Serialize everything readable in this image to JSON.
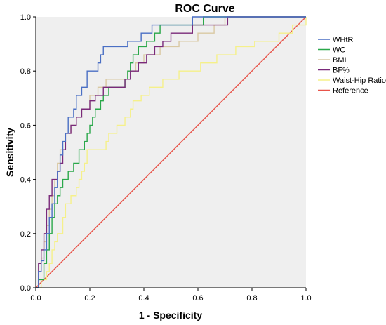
{
  "chart_data": {
    "type": "line",
    "title": "ROC Curve",
    "xlabel": "1 - Specificity",
    "ylabel": "Sensitivity",
    "xlim": [
      0,
      1
    ],
    "ylim": [
      0,
      1
    ],
    "xticks": [
      "0.0",
      "0.2",
      "0.4",
      "0.6",
      "0.8",
      "1.0"
    ],
    "yticks": [
      "0.0",
      "0.2",
      "0.4",
      "0.6",
      "0.8",
      "1.0"
    ],
    "grid": false,
    "legend_position": "top-right",
    "colors": {
      "plot_background": "#efefef",
      "axis": "#000000"
    },
    "series": [
      {
        "name": "WHtR",
        "color": "#4a6fc4",
        "points": [
          [
            0,
            0
          ],
          [
            0.01,
            0
          ],
          [
            0.01,
            0.06
          ],
          [
            0.02,
            0.06
          ],
          [
            0.02,
            0.1
          ],
          [
            0.03,
            0.1
          ],
          [
            0.03,
            0.14
          ],
          [
            0.04,
            0.14
          ],
          [
            0.04,
            0.2
          ],
          [
            0.05,
            0.2
          ],
          [
            0.05,
            0.26
          ],
          [
            0.06,
            0.26
          ],
          [
            0.06,
            0.31
          ],
          [
            0.07,
            0.31
          ],
          [
            0.07,
            0.37
          ],
          [
            0.08,
            0.37
          ],
          [
            0.08,
            0.43
          ],
          [
            0.09,
            0.43
          ],
          [
            0.09,
            0.49
          ],
          [
            0.1,
            0.49
          ],
          [
            0.1,
            0.54
          ],
          [
            0.11,
            0.54
          ],
          [
            0.11,
            0.57
          ],
          [
            0.12,
            0.57
          ],
          [
            0.12,
            0.63
          ],
          [
            0.14,
            0.63
          ],
          [
            0.14,
            0.66
          ],
          [
            0.15,
            0.66
          ],
          [
            0.15,
            0.71
          ],
          [
            0.17,
            0.71
          ],
          [
            0.17,
            0.74
          ],
          [
            0.19,
            0.74
          ],
          [
            0.19,
            0.8
          ],
          [
            0.23,
            0.8
          ],
          [
            0.23,
            0.83
          ],
          [
            0.24,
            0.83
          ],
          [
            0.24,
            0.86
          ],
          [
            0.25,
            0.86
          ],
          [
            0.25,
            0.89
          ],
          [
            0.34,
            0.89
          ],
          [
            0.34,
            0.91
          ],
          [
            0.39,
            0.91
          ],
          [
            0.39,
            0.94
          ],
          [
            0.43,
            0.94
          ],
          [
            0.43,
            0.97
          ],
          [
            0.58,
            0.97
          ],
          [
            0.58,
            1.0
          ],
          [
            1,
            1
          ]
        ]
      },
      {
        "name": "WC",
        "color": "#2aa84a",
        "points": [
          [
            0,
            0
          ],
          [
            0.01,
            0
          ],
          [
            0.01,
            0.03
          ],
          [
            0.03,
            0.03
          ],
          [
            0.03,
            0.09
          ],
          [
            0.04,
            0.09
          ],
          [
            0.04,
            0.14
          ],
          [
            0.05,
            0.14
          ],
          [
            0.05,
            0.2
          ],
          [
            0.06,
            0.2
          ],
          [
            0.06,
            0.26
          ],
          [
            0.07,
            0.26
          ],
          [
            0.07,
            0.31
          ],
          [
            0.08,
            0.31
          ],
          [
            0.08,
            0.34
          ],
          [
            0.09,
            0.34
          ],
          [
            0.09,
            0.37
          ],
          [
            0.1,
            0.37
          ],
          [
            0.1,
            0.4
          ],
          [
            0.12,
            0.4
          ],
          [
            0.12,
            0.43
          ],
          [
            0.14,
            0.43
          ],
          [
            0.14,
            0.46
          ],
          [
            0.16,
            0.46
          ],
          [
            0.16,
            0.51
          ],
          [
            0.18,
            0.51
          ],
          [
            0.18,
            0.54
          ],
          [
            0.19,
            0.54
          ],
          [
            0.19,
            0.57
          ],
          [
            0.2,
            0.57
          ],
          [
            0.2,
            0.6
          ],
          [
            0.21,
            0.6
          ],
          [
            0.21,
            0.63
          ],
          [
            0.22,
            0.63
          ],
          [
            0.22,
            0.66
          ],
          [
            0.24,
            0.66
          ],
          [
            0.24,
            0.69
          ],
          [
            0.25,
            0.69
          ],
          [
            0.25,
            0.71
          ],
          [
            0.27,
            0.71
          ],
          [
            0.27,
            0.74
          ],
          [
            0.33,
            0.74
          ],
          [
            0.33,
            0.77
          ],
          [
            0.34,
            0.77
          ],
          [
            0.34,
            0.8
          ],
          [
            0.35,
            0.8
          ],
          [
            0.35,
            0.83
          ],
          [
            0.36,
            0.83
          ],
          [
            0.36,
            0.86
          ],
          [
            0.38,
            0.86
          ],
          [
            0.38,
            0.89
          ],
          [
            0.41,
            0.89
          ],
          [
            0.41,
            0.91
          ],
          [
            0.44,
            0.91
          ],
          [
            0.44,
            0.94
          ],
          [
            0.46,
            0.94
          ],
          [
            0.46,
            0.97
          ],
          [
            0.62,
            0.97
          ],
          [
            0.62,
            1.0
          ],
          [
            1,
            1
          ]
        ]
      },
      {
        "name": "BMI",
        "color": "#d9c9a3",
        "points": [
          [
            0,
            0
          ],
          [
            0.01,
            0
          ],
          [
            0.01,
            0.06
          ],
          [
            0.02,
            0.06
          ],
          [
            0.02,
            0.11
          ],
          [
            0.03,
            0.11
          ],
          [
            0.03,
            0.17
          ],
          [
            0.04,
            0.17
          ],
          [
            0.04,
            0.23
          ],
          [
            0.05,
            0.23
          ],
          [
            0.05,
            0.29
          ],
          [
            0.06,
            0.29
          ],
          [
            0.06,
            0.34
          ],
          [
            0.07,
            0.34
          ],
          [
            0.07,
            0.4
          ],
          [
            0.08,
            0.4
          ],
          [
            0.08,
            0.46
          ],
          [
            0.09,
            0.46
          ],
          [
            0.09,
            0.51
          ],
          [
            0.11,
            0.51
          ],
          [
            0.11,
            0.57
          ],
          [
            0.13,
            0.57
          ],
          [
            0.13,
            0.6
          ],
          [
            0.15,
            0.6
          ],
          [
            0.15,
            0.63
          ],
          [
            0.17,
            0.63
          ],
          [
            0.17,
            0.66
          ],
          [
            0.2,
            0.66
          ],
          [
            0.2,
            0.71
          ],
          [
            0.23,
            0.71
          ],
          [
            0.23,
            0.74
          ],
          [
            0.26,
            0.74
          ],
          [
            0.26,
            0.77
          ],
          [
            0.34,
            0.77
          ],
          [
            0.34,
            0.8
          ],
          [
            0.37,
            0.8
          ],
          [
            0.37,
            0.83
          ],
          [
            0.4,
            0.83
          ],
          [
            0.4,
            0.86
          ],
          [
            0.46,
            0.86
          ],
          [
            0.46,
            0.89
          ],
          [
            0.53,
            0.89
          ],
          [
            0.53,
            0.91
          ],
          [
            0.6,
            0.91
          ],
          [
            0.6,
            0.94
          ],
          [
            0.66,
            0.94
          ],
          [
            0.66,
            0.97
          ],
          [
            0.7,
            0.97
          ],
          [
            0.7,
            1.0
          ],
          [
            1,
            1
          ]
        ]
      },
      {
        "name": "BF%",
        "color": "#7a2a7a",
        "points": [
          [
            0,
            0
          ],
          [
            0.01,
            0
          ],
          [
            0.01,
            0.09
          ],
          [
            0.02,
            0.09
          ],
          [
            0.02,
            0.14
          ],
          [
            0.03,
            0.14
          ],
          [
            0.03,
            0.2
          ],
          [
            0.04,
            0.2
          ],
          [
            0.04,
            0.29
          ],
          [
            0.05,
            0.29
          ],
          [
            0.05,
            0.34
          ],
          [
            0.06,
            0.34
          ],
          [
            0.06,
            0.4
          ],
          [
            0.08,
            0.4
          ],
          [
            0.08,
            0.43
          ],
          [
            0.09,
            0.43
          ],
          [
            0.09,
            0.46
          ],
          [
            0.1,
            0.46
          ],
          [
            0.1,
            0.51
          ],
          [
            0.11,
            0.51
          ],
          [
            0.11,
            0.57
          ],
          [
            0.13,
            0.57
          ],
          [
            0.13,
            0.6
          ],
          [
            0.15,
            0.6
          ],
          [
            0.15,
            0.63
          ],
          [
            0.17,
            0.63
          ],
          [
            0.17,
            0.66
          ],
          [
            0.2,
            0.66
          ],
          [
            0.2,
            0.69
          ],
          [
            0.22,
            0.69
          ],
          [
            0.22,
            0.71
          ],
          [
            0.25,
            0.71
          ],
          [
            0.25,
            0.74
          ],
          [
            0.33,
            0.74
          ],
          [
            0.33,
            0.77
          ],
          [
            0.35,
            0.77
          ],
          [
            0.35,
            0.8
          ],
          [
            0.38,
            0.8
          ],
          [
            0.38,
            0.83
          ],
          [
            0.41,
            0.83
          ],
          [
            0.41,
            0.86
          ],
          [
            0.44,
            0.86
          ],
          [
            0.44,
            0.89
          ],
          [
            0.47,
            0.89
          ],
          [
            0.47,
            0.91
          ],
          [
            0.5,
            0.91
          ],
          [
            0.5,
            0.94
          ],
          [
            0.58,
            0.94
          ],
          [
            0.58,
            0.97
          ],
          [
            0.71,
            0.97
          ],
          [
            0.71,
            1.0
          ],
          [
            1,
            1
          ]
        ]
      },
      {
        "name": "Waist-Hip Ratio",
        "color": "#f5f08a",
        "points": [
          [
            0,
            0
          ],
          [
            0.02,
            0
          ],
          [
            0.02,
            0.03
          ],
          [
            0.04,
            0.03
          ],
          [
            0.04,
            0.06
          ],
          [
            0.05,
            0.06
          ],
          [
            0.05,
            0.09
          ],
          [
            0.06,
            0.09
          ],
          [
            0.06,
            0.14
          ],
          [
            0.07,
            0.14
          ],
          [
            0.07,
            0.17
          ],
          [
            0.08,
            0.17
          ],
          [
            0.08,
            0.2
          ],
          [
            0.1,
            0.2
          ],
          [
            0.1,
            0.26
          ],
          [
            0.11,
            0.26
          ],
          [
            0.11,
            0.31
          ],
          [
            0.13,
            0.31
          ],
          [
            0.13,
            0.34
          ],
          [
            0.15,
            0.34
          ],
          [
            0.15,
            0.37
          ],
          [
            0.16,
            0.37
          ],
          [
            0.16,
            0.4
          ],
          [
            0.17,
            0.4
          ],
          [
            0.17,
            0.43
          ],
          [
            0.18,
            0.43
          ],
          [
            0.18,
            0.46
          ],
          [
            0.19,
            0.46
          ],
          [
            0.19,
            0.51
          ],
          [
            0.26,
            0.51
          ],
          [
            0.26,
            0.54
          ],
          [
            0.27,
            0.54
          ],
          [
            0.27,
            0.57
          ],
          [
            0.3,
            0.57
          ],
          [
            0.3,
            0.6
          ],
          [
            0.33,
            0.6
          ],
          [
            0.33,
            0.63
          ],
          [
            0.35,
            0.63
          ],
          [
            0.35,
            0.66
          ],
          [
            0.36,
            0.66
          ],
          [
            0.36,
            0.69
          ],
          [
            0.39,
            0.69
          ],
          [
            0.39,
            0.71
          ],
          [
            0.42,
            0.71
          ],
          [
            0.42,
            0.74
          ],
          [
            0.47,
            0.74
          ],
          [
            0.47,
            0.77
          ],
          [
            0.53,
            0.77
          ],
          [
            0.53,
            0.8
          ],
          [
            0.61,
            0.8
          ],
          [
            0.61,
            0.83
          ],
          [
            0.67,
            0.83
          ],
          [
            0.67,
            0.86
          ],
          [
            0.74,
            0.86
          ],
          [
            0.74,
            0.89
          ],
          [
            0.81,
            0.89
          ],
          [
            0.81,
            0.91
          ],
          [
            0.9,
            0.91
          ],
          [
            0.9,
            0.94
          ],
          [
            0.95,
            0.94
          ],
          [
            0.95,
            0.97
          ],
          [
            1.0,
            0.97
          ],
          [
            1,
            1
          ]
        ]
      },
      {
        "name": "Reference",
        "color": "#e8544a",
        "points": [
          [
            0,
            0
          ],
          [
            1,
            1
          ]
        ]
      }
    ]
  }
}
